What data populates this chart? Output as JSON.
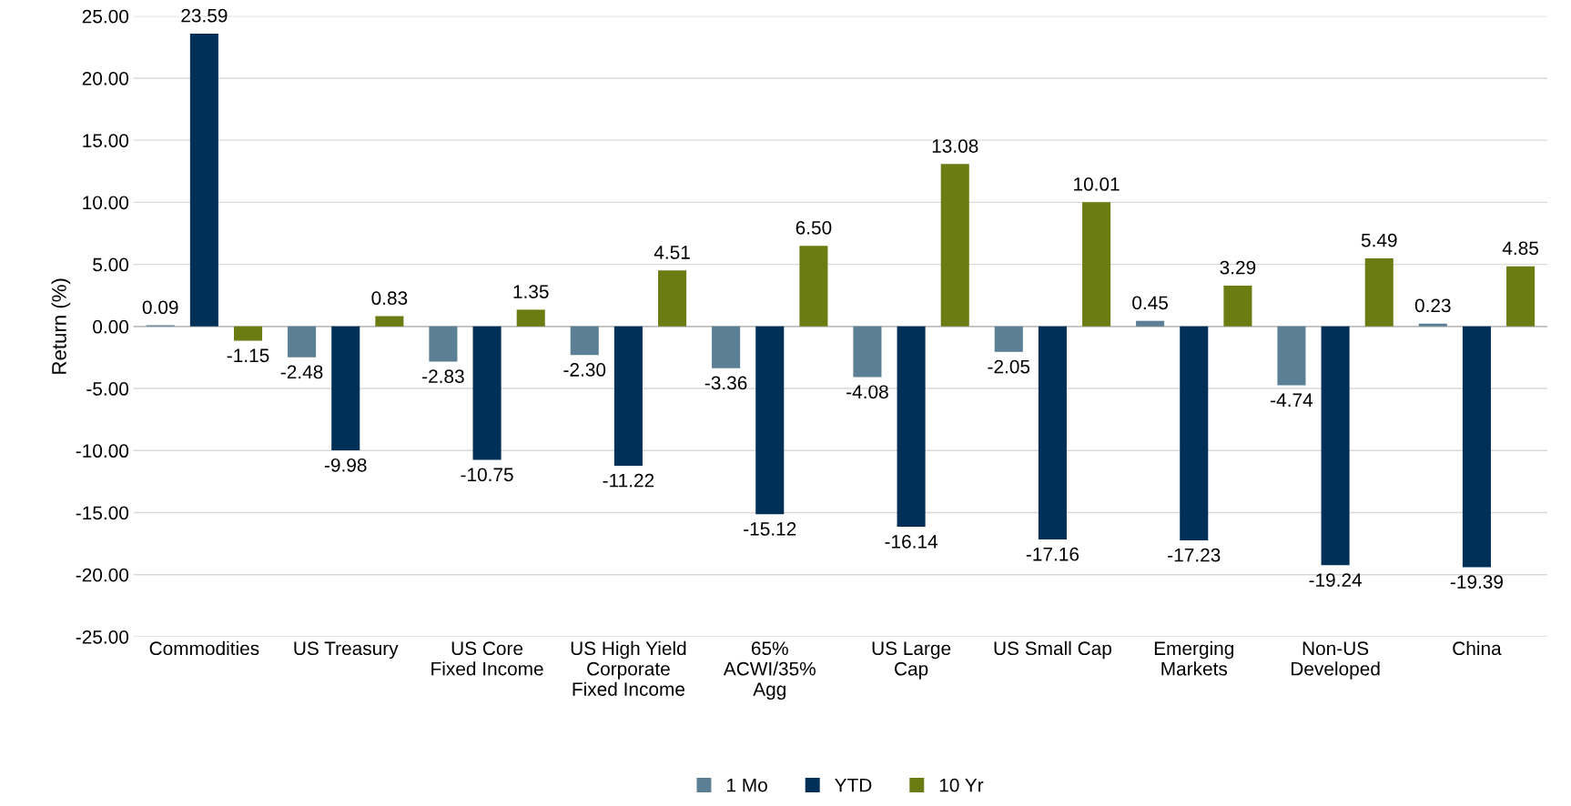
{
  "chart_data": {
    "type": "bar",
    "ylabel": "Return (%)",
    "categories": [
      "Commodities",
      "US Treasury",
      "US Core\nFixed Income",
      "US High Yield\nCorporate\nFixed Income",
      "65%\nACWI/35%\nAgg",
      "US Large\nCap",
      "US Small Cap",
      "Emerging\nMarkets",
      "Non-US\nDeveloped",
      "China"
    ],
    "series": [
      {
        "name": "1 Mo",
        "color": "#5b7f95",
        "values": [
          0.09,
          -2.48,
          -2.83,
          -2.3,
          -3.36,
          -4.08,
          -2.05,
          0.45,
          -4.74,
          0.23
        ],
        "value_labels": [
          "0.09",
          "-2.48",
          "-2.83",
          "-2.30",
          "-3.36",
          "-4.08",
          "-2.05",
          "0.45",
          "-4.74",
          "0.23"
        ]
      },
      {
        "name": "YTD",
        "color": "#003057",
        "values": [
          23.59,
          -9.98,
          -10.75,
          -11.22,
          -15.12,
          -16.14,
          -17.16,
          -17.23,
          -19.24,
          -19.39
        ],
        "value_labels": [
          "23.59",
          "-9.98",
          "-10.75",
          "-11.22",
          "-15.12",
          "-16.14",
          "-17.16",
          "-17.23",
          "-19.24",
          "-19.39"
        ]
      },
      {
        "name": "10 Yr",
        "color": "#6b7d12",
        "values": [
          -1.15,
          0.83,
          1.35,
          4.51,
          6.5,
          13.08,
          10.01,
          3.29,
          5.49,
          4.85
        ],
        "value_labels": [
          "-1.15",
          "0.83",
          "1.35",
          "4.51",
          "6.50",
          "13.08",
          "10.01",
          "3.29",
          "5.49",
          "4.85"
        ]
      }
    ],
    "ylim": [
      -25,
      25
    ],
    "yticks": [
      {
        "value": -25,
        "label": "-25.00"
      },
      {
        "value": -20,
        "label": "-20.00"
      },
      {
        "value": -15,
        "label": "-15.00"
      },
      {
        "value": -10,
        "label": "-10.00"
      },
      {
        "value": -5,
        "label": "-5.00"
      },
      {
        "value": 0,
        "label": "0.00"
      },
      {
        "value": 5,
        "label": "5.00"
      },
      {
        "value": 10,
        "label": "10.00"
      },
      {
        "value": 15,
        "label": "15.00"
      },
      {
        "value": 20,
        "label": "20.00"
      },
      {
        "value": 25,
        "label": "25.00"
      }
    ],
    "grid": "y",
    "legend": "bottom"
  }
}
